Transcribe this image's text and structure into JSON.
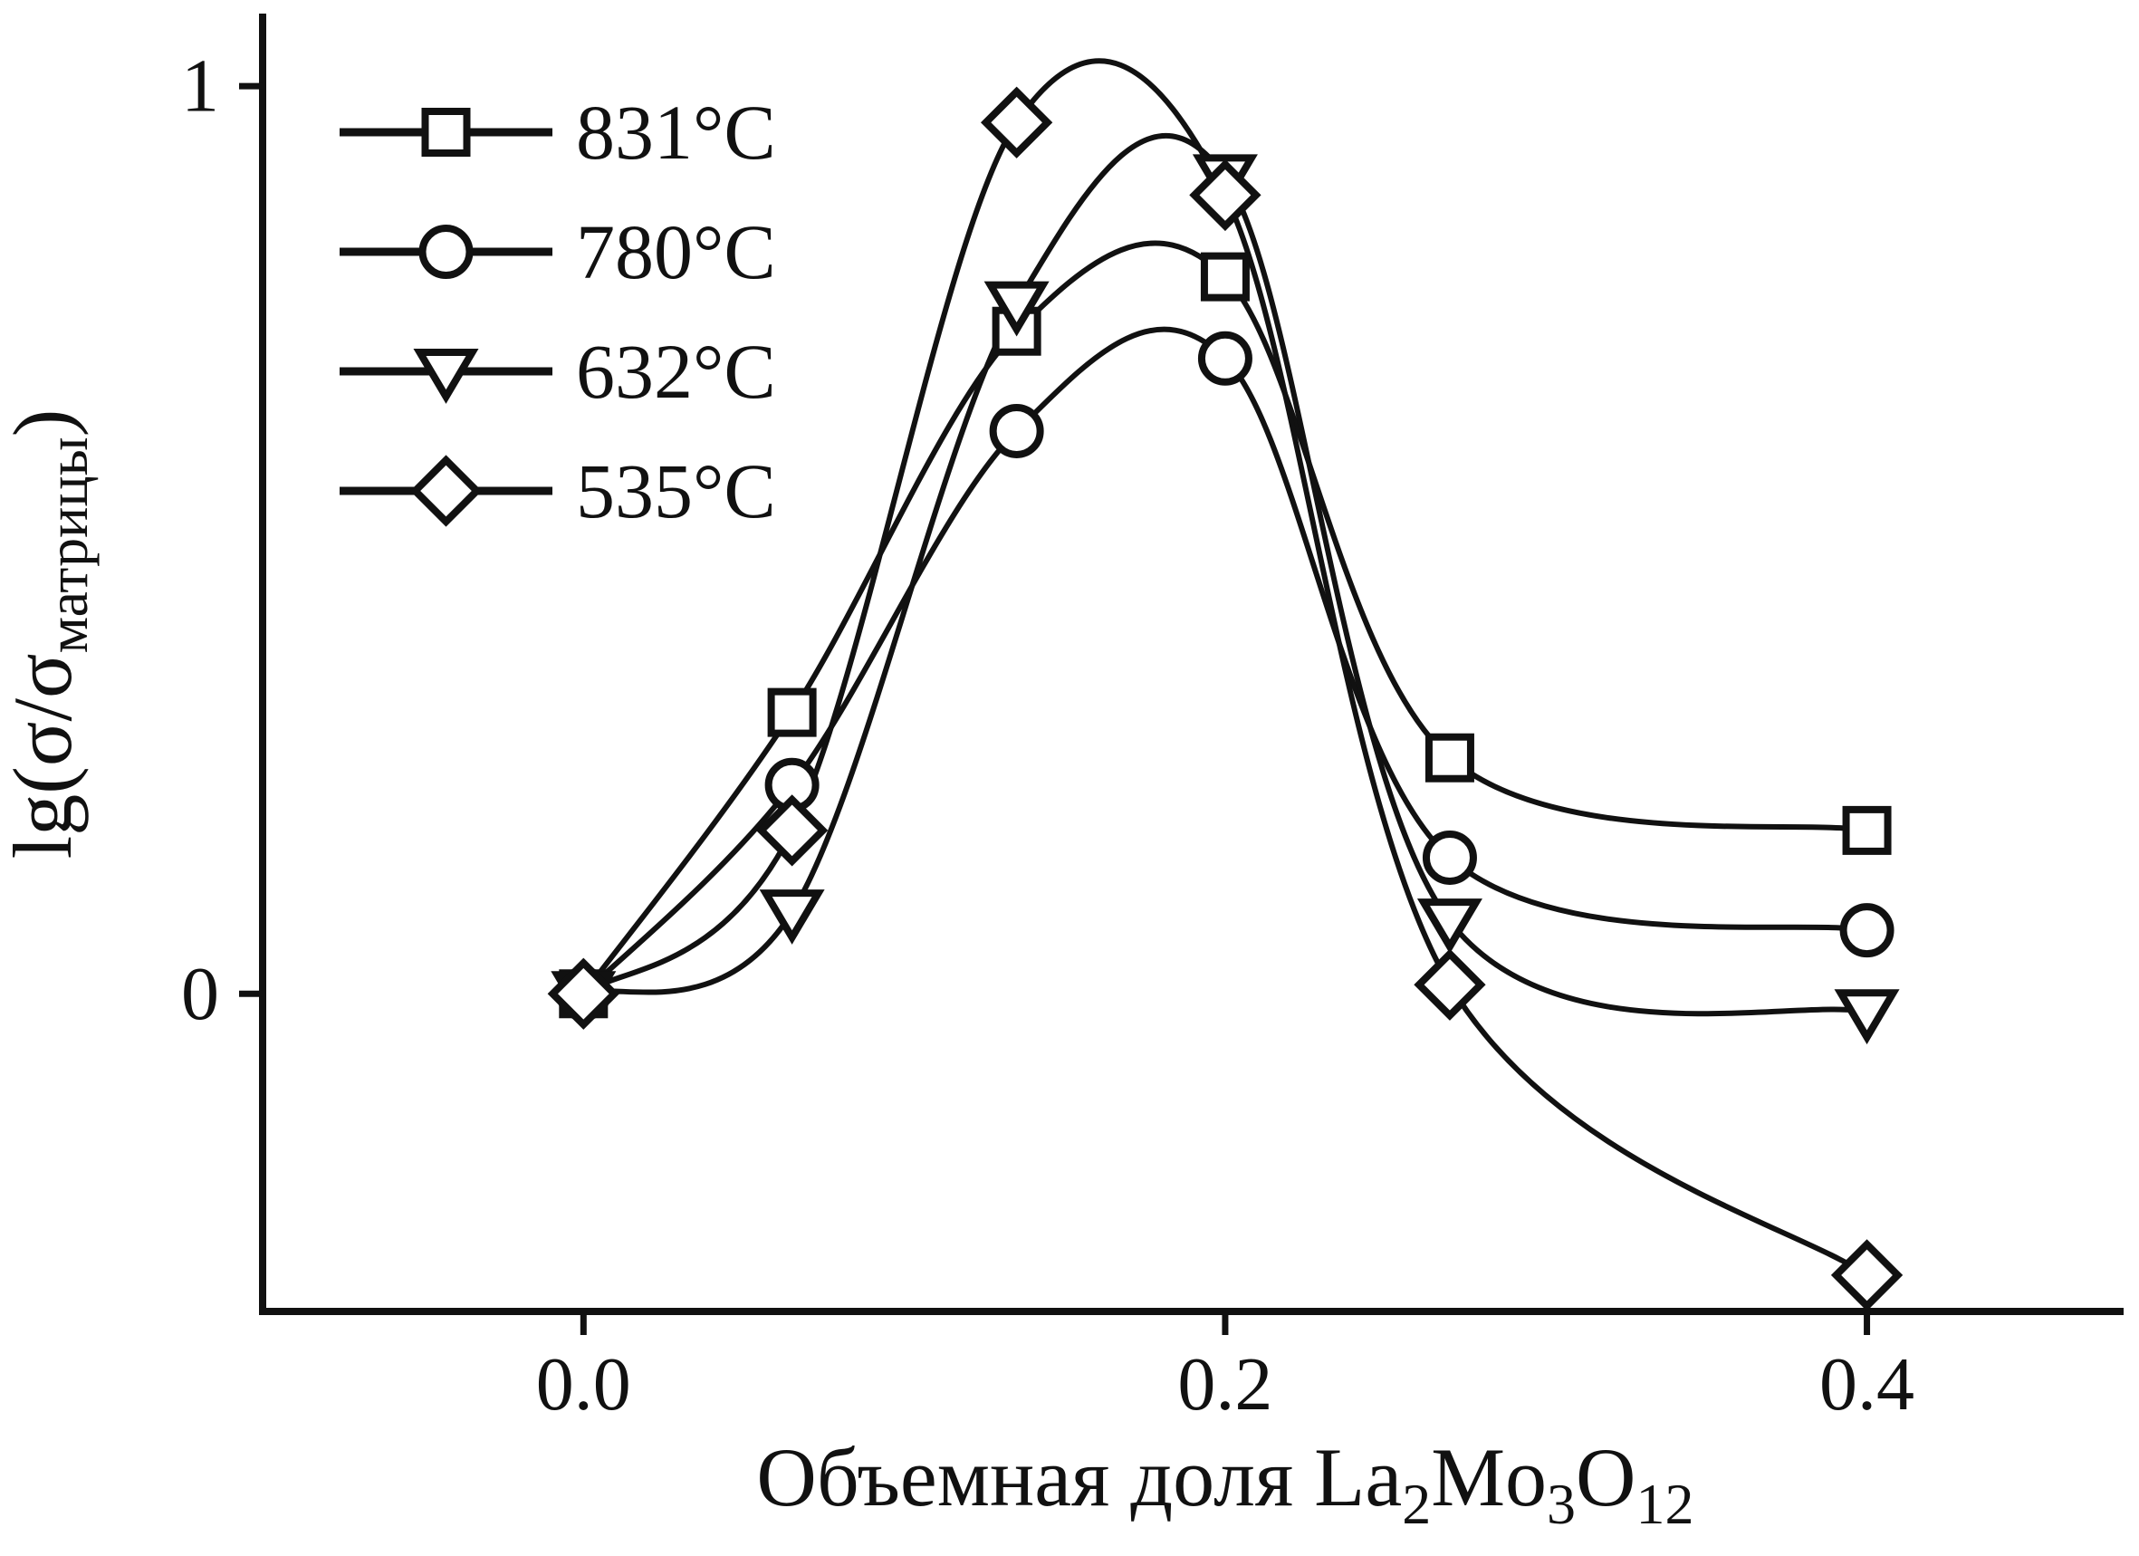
{
  "chart_data": {
    "type": "line",
    "x": [
      0.0,
      0.065,
      0.135,
      0.2,
      0.27,
      0.4
    ],
    "series": [
      {
        "name": "831°C",
        "marker": "square",
        "values": [
          0.0,
          0.31,
          0.73,
          0.79,
          0.26,
          0.18
        ]
      },
      {
        "name": "780°C",
        "marker": "circle",
        "values": [
          0.0,
          0.23,
          0.62,
          0.7,
          0.15,
          0.07
        ]
      },
      {
        "name": "632°C",
        "marker": "triangle-down",
        "values": [
          0.0,
          0.09,
          0.76,
          0.9,
          0.08,
          -0.02
        ]
      },
      {
        "name": "535°C",
        "marker": "diamond",
        "values": [
          0.0,
          0.18,
          0.96,
          0.88,
          0.01,
          -0.31
        ]
      }
    ],
    "xlabel_parts": [
      {
        "text": "Объемная доля La"
      },
      {
        "text": "2",
        "sub": true
      },
      {
        "text": "Mo"
      },
      {
        "text": "3",
        "sub": true
      },
      {
        "text": "O"
      },
      {
        "text": "12",
        "sub": true
      }
    ],
    "ylabel_parts": [
      {
        "text": "lg(σ/σ"
      },
      {
        "text": "матрицы",
        "sub": true
      },
      {
        "text": ")"
      }
    ],
    "x_ticks": [
      0.0,
      0.2,
      0.4
    ],
    "x_tick_labels": [
      "0.0",
      "0.2",
      "0.4"
    ],
    "y_ticks": [
      0,
      1
    ],
    "y_tick_labels": [
      "0",
      "1"
    ],
    "xlim": [
      -0.1,
      0.48
    ],
    "ylim": [
      -0.35,
      1.08
    ],
    "grid": false,
    "legend_position": "top-left",
    "colors": {
      "line": "#111111",
      "marker_fill": "#ffffff",
      "background": "#ffffff"
    }
  }
}
